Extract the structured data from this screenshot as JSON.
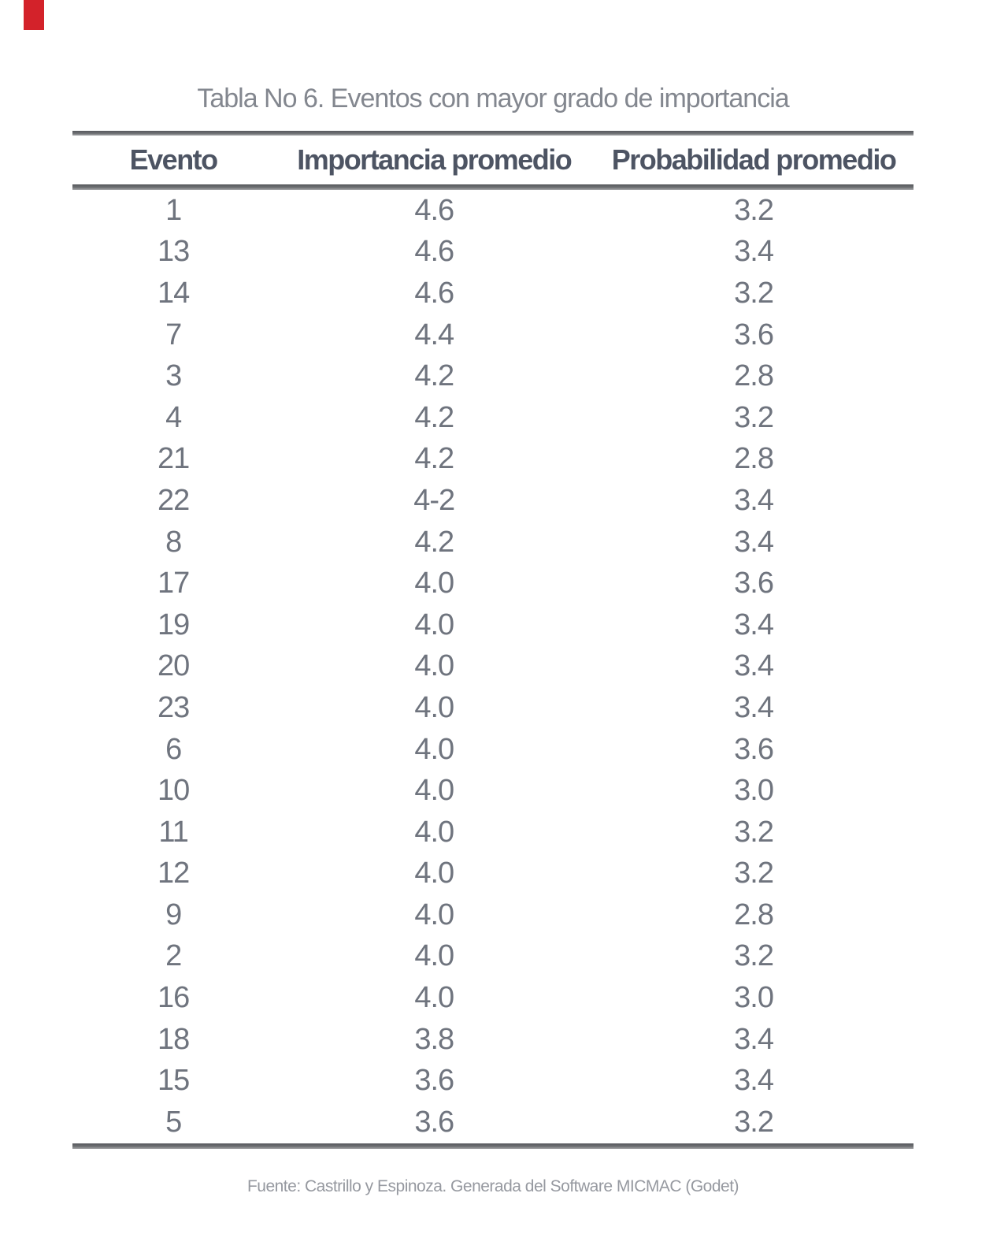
{
  "page": {
    "title": "Tabla No 6. Eventos con mayor grado de importancia",
    "source_note": "Fuente: Castrillo y Espinoza. Generada del Software MICMAC (Godet)"
  },
  "accent": {
    "red_mark_color": "#d3222a",
    "rule_color": "#6e7073",
    "header_text_color": "#4d5463",
    "cell_text_color": "#6f747e"
  },
  "table": {
    "headers": [
      "Evento",
      "Importancia promedio",
      "Probabilidad promedio"
    ],
    "rows": [
      [
        "1",
        "4.6",
        "3.2"
      ],
      [
        "13",
        "4.6",
        "3.4"
      ],
      [
        "14",
        "4.6",
        "3.2"
      ],
      [
        "7",
        "4.4",
        "3.6"
      ],
      [
        "3",
        "4.2",
        "2.8"
      ],
      [
        "4",
        "4.2",
        "3.2"
      ],
      [
        "21",
        "4.2",
        "2.8"
      ],
      [
        "22",
        "4-2",
        "3.4"
      ],
      [
        "8",
        "4.2",
        "3.4"
      ],
      [
        "17",
        "4.0",
        "3.6"
      ],
      [
        "19",
        "4.0",
        "3.4"
      ],
      [
        "20",
        "4.0",
        "3.4"
      ],
      [
        "23",
        "4.0",
        "3.4"
      ],
      [
        "6",
        "4.0",
        "3.6"
      ],
      [
        "10",
        "4.0",
        "3.0"
      ],
      [
        "11",
        "4.0",
        "3.2"
      ],
      [
        "12",
        "4.0",
        "3.2"
      ],
      [
        "9",
        "4.0",
        "2.8"
      ],
      [
        "2",
        "4.0",
        "3.2"
      ],
      [
        "16",
        "4.0",
        "3.0"
      ],
      [
        "18",
        "3.8",
        "3.4"
      ],
      [
        "15",
        "3.6",
        "3.4"
      ],
      [
        "5",
        "3.6",
        "3.2"
      ]
    ]
  }
}
